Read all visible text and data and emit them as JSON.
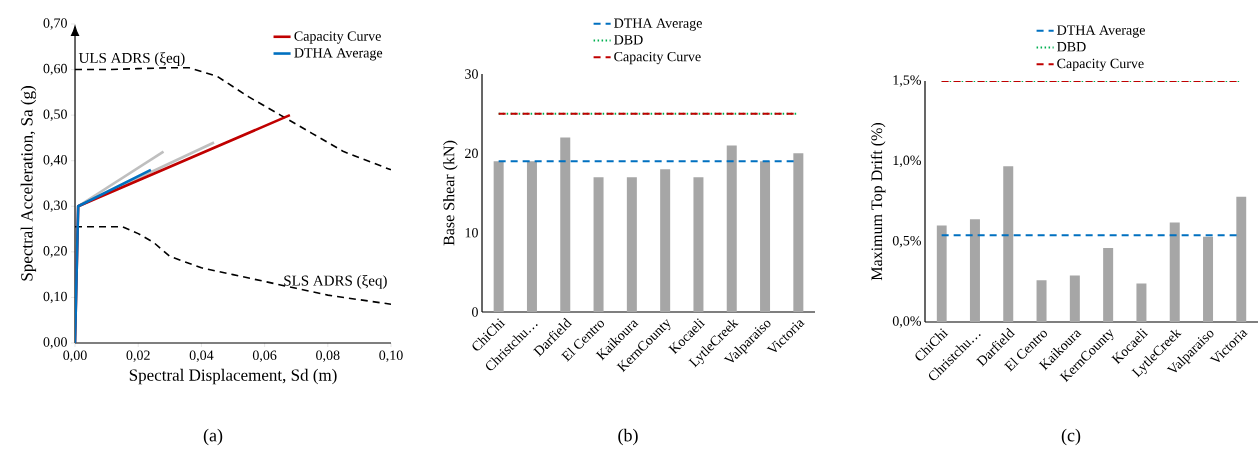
{
  "chart_data": [
    {
      "type": "line",
      "xlabel": "Spectral Displacement, Sd (m)",
      "ylabel": "Spectral Acceleration, Sa (g)",
      "xlim": [
        0,
        0.1
      ],
      "ylim": [
        0,
        0.7
      ],
      "xticks": [
        {
          "value": 0,
          "label": "0,00"
        },
        {
          "value": 0.02,
          "label": "0,02"
        },
        {
          "value": 0.04,
          "label": "0,04"
        },
        {
          "value": 0.06,
          "label": "0,06"
        },
        {
          "value": 0.08,
          "label": "0,08"
        },
        {
          "value": 0.1,
          "label": "0,10"
        }
      ],
      "yticks": [
        {
          "value": 0,
          "label": "0,00"
        },
        {
          "value": 0.1,
          "label": "0,10"
        },
        {
          "value": 0.2,
          "label": "0,20"
        },
        {
          "value": 0.3,
          "label": "0,30"
        },
        {
          "value": 0.4,
          "label": "0,40"
        },
        {
          "value": 0.5,
          "label": "0,50"
        },
        {
          "value": 0.6,
          "label": "0,60"
        },
        {
          "value": 0.7,
          "label": "0,70"
        }
      ],
      "legend": "top right",
      "series": [
        {
          "name": "ULS ADRS (ξeq)",
          "color": "#000000",
          "line_style": "dashed",
          "x": [
            0,
            0.01,
            0.02,
            0.03,
            0.036,
            0.045,
            0.055,
            0.065,
            0.075,
            0.085,
            0.1
          ],
          "values": [
            0.6,
            0.6,
            0.602,
            0.604,
            0.604,
            0.585,
            0.54,
            0.5,
            0.46,
            0.42,
            0.38
          ]
        },
        {
          "name": "SLS ADRS (ξeq)",
          "color": "#000000",
          "line_style": "dashed",
          "x": [
            0,
            0.01,
            0.015,
            0.02,
            0.025,
            0.03,
            0.04,
            0.05,
            0.06,
            0.07,
            0.08,
            0.09,
            0.1
          ],
          "values": [
            0.255,
            0.255,
            0.255,
            0.24,
            0.22,
            0.19,
            0.165,
            0.15,
            0.135,
            0.12,
            0.105,
            0.095,
            0.085
          ]
        },
        {
          "color": "#bfbfbf",
          "line_style": "solid",
          "x": [
            0.001,
            0.028
          ],
          "values": [
            0.3,
            0.42
          ]
        },
        {
          "color": "#bfbfbf",
          "line_style": "solid",
          "x": [
            0.001,
            0.044
          ],
          "values": [
            0.3,
            0.44
          ]
        },
        {
          "name": "Capacity Curve",
          "color": "#c00000",
          "line_style": "solid",
          "x": [
            0,
            0.001,
            0.068
          ],
          "values": [
            0,
            0.3,
            0.5
          ]
        },
        {
          "name": "DTHA Average",
          "color": "#0070c0",
          "line_style": "solid",
          "x": [
            0,
            0.001,
            0.024
          ],
          "values": [
            0,
            0.3,
            0.38
          ]
        }
      ],
      "annotations": [
        "(a)"
      ]
    },
    {
      "type": "bar",
      "ylabel": "Base Shear (kN)",
      "categories": [
        "ChiChi",
        "Christchu…",
        "Darfield",
        "El Centro",
        "Kaikoura",
        "KernCounty",
        "Kocaeli",
        "LytleCreek",
        "Valparaiso",
        "Victoria"
      ],
      "values": [
        19,
        19,
        22,
        17,
        17,
        18,
        17,
        21,
        19,
        20
      ],
      "color": "#a6a6a6",
      "ylim": [
        0,
        30
      ],
      "yticks": [
        0,
        10,
        20,
        30
      ],
      "legend": "top",
      "ref_lines": [
        {
          "axis": "y",
          "value": 19,
          "label": "DTHA Average",
          "color": "#0070c0",
          "line_style": "dashed"
        },
        {
          "axis": "y",
          "value": 25,
          "label": "DBD",
          "color": "#00b050",
          "line_style": "dotted"
        },
        {
          "axis": "y",
          "value": 25,
          "label": "Capacity Curve",
          "color": "#c00000",
          "line_style": "dashed"
        }
      ],
      "annotations": [
        "(b)"
      ]
    },
    {
      "type": "bar",
      "ylabel": "Maximum Top Drift (%)",
      "categories": [
        "ChiChi",
        "Christchu…",
        "Darfield",
        "El Centro",
        "Kaikoura",
        "KernCounty",
        "Kocaeli",
        "LytleCreek",
        "Valparaiso",
        "Victoria"
      ],
      "values": [
        0.6,
        0.64,
        0.97,
        0.26,
        0.29,
        0.46,
        0.24,
        0.62,
        0.53,
        0.78
      ],
      "color": "#a6a6a6",
      "ylim": [
        0,
        1.5
      ],
      "yticks": [
        {
          "value": 0,
          "label": "0,0%"
        },
        {
          "value": 0.5,
          "label": "0,5%"
        },
        {
          "value": 1.0,
          "label": "1,0%"
        },
        {
          "value": 1.5,
          "label": "1,5%"
        }
      ],
      "legend": "top",
      "ref_lines": [
        {
          "axis": "y",
          "value": 0.54,
          "label": "DTHA Average",
          "color": "#0070c0",
          "line_style": "dashed"
        },
        {
          "axis": "y",
          "value": 1.5,
          "label": "DBD",
          "color": "#00b050",
          "line_style": "dotted"
        },
        {
          "axis": "y",
          "value": 1.5,
          "label": "Capacity Curve",
          "color": "#c00000",
          "line_style": "dashed"
        }
      ],
      "annotations": [
        "(c)"
      ]
    }
  ]
}
